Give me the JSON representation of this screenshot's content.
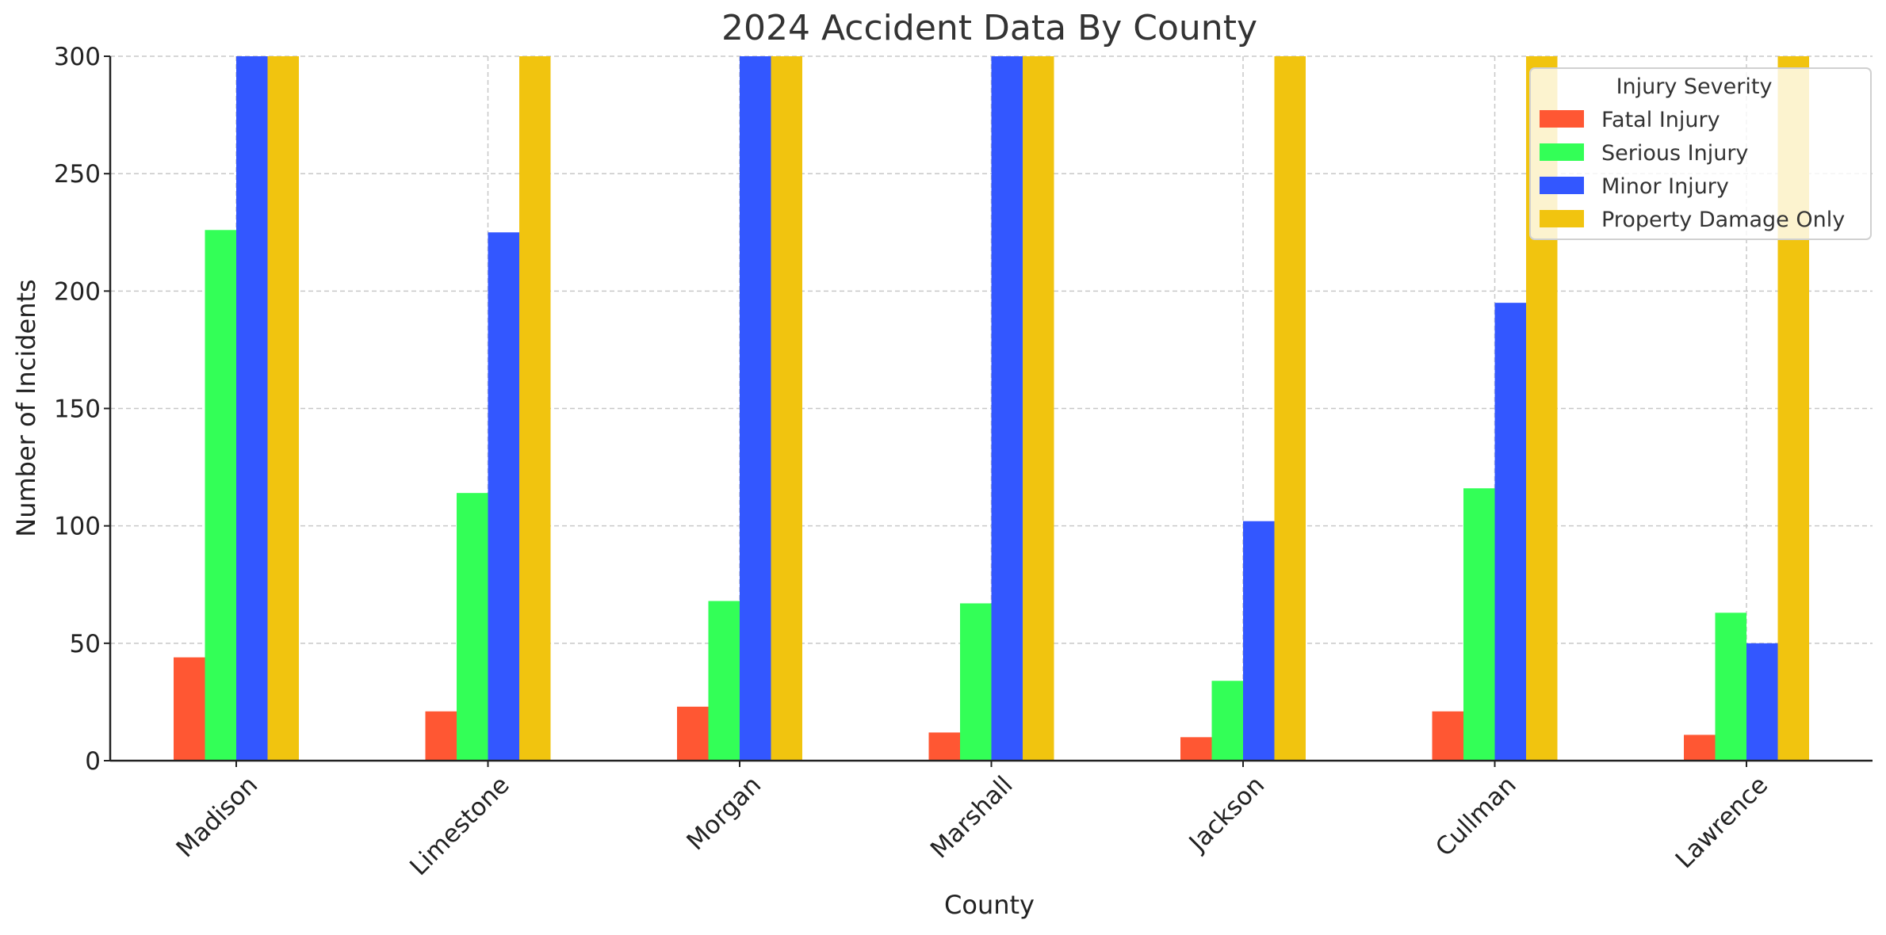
{
  "chart_data": {
    "type": "bar",
    "title": "2024 Accident Data By County",
    "xlabel": "County",
    "ylabel": "Number of Incidents",
    "ylim": [
      0,
      300
    ],
    "yticks": [
      0,
      50,
      100,
      150,
      200,
      250,
      300
    ],
    "grid": true,
    "legend_title": "Injury Severity",
    "legend_position": "top-right",
    "categories": [
      "Madison",
      "Limestone",
      "Morgan",
      "Marshall",
      "Jackson",
      "Cullman",
      "Lawrence"
    ],
    "series": [
      {
        "name": "Fatal Injury",
        "color": "#ff5733",
        "values": [
          44,
          21,
          23,
          12,
          10,
          21,
          11
        ]
      },
      {
        "name": "Serious Injury",
        "color": "#33ff57",
        "values": [
          226,
          114,
          68,
          67,
          34,
          116,
          63
        ]
      },
      {
        "name": "Minor Injury",
        "color": "#3357ff",
        "values": [
          300,
          225,
          300,
          300,
          102,
          195,
          50
        ]
      },
      {
        "name": "Property Damage Only",
        "color": "#f1c40f",
        "values": [
          300,
          300,
          300,
          300,
          300,
          300,
          300
        ]
      }
    ]
  }
}
